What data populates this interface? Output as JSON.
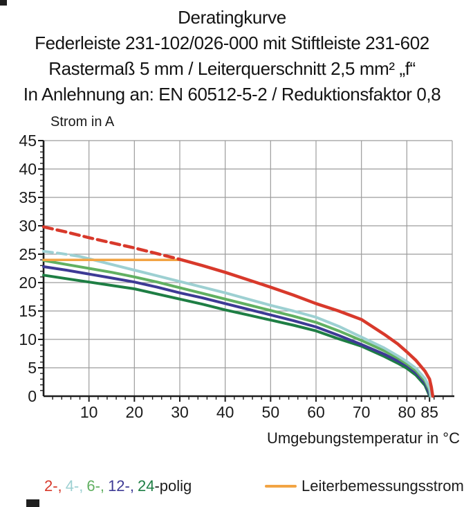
{
  "header": {
    "title": "Deratingkurve",
    "line2": "Federleiste 231-102/026-000 mit Stiftleiste 231-602",
    "line3": "Rastermaß 5 mm / Leiterquerschnitt 2,5 mm² „f“",
    "line4": "In Anlehnung an: EN 60512-5-2 / Reduktionsfaktor 0,8"
  },
  "legend": {
    "series": [
      {
        "label": "2-,",
        "color": "#d8392b"
      },
      {
        "label": "4-,",
        "color": "#9dd0d2"
      },
      {
        "label": "6-,",
        "color": "#61b061"
      },
      {
        "label": "12-,",
        "color": "#3d3a95"
      },
      {
        "label": "24",
        "color": "#1e7e44"
      }
    ],
    "suffix": "-polig",
    "rated_label": "Leiterbemessungsstrom",
    "rated_color": "#f2a444"
  },
  "chart_data": {
    "type": "line",
    "title": "Deratingkurve",
    "xlabel": "Umgebungstemperatur in °C",
    "ylabel": "Strom in A",
    "xlim": [
      0,
      90
    ],
    "ylim": [
      0,
      45
    ],
    "grid": {
      "x_step": 10,
      "y_step": 5,
      "color": "#9c9c9c"
    },
    "axis_color": "#1c1c1c",
    "x_tick_labels": [
      10,
      20,
      30,
      40,
      50,
      60,
      70,
      80,
      85
    ],
    "y_tick_labels": [
      45,
      40,
      35,
      30,
      25,
      20,
      15,
      10,
      5,
      0
    ],
    "x_minor_step": 2,
    "y_minor_step": 1,
    "draw_order": [
      4,
      3,
      2,
      1,
      5,
      0
    ],
    "series": [
      {
        "name": "2-polig",
        "color": "#d8392b",
        "width": 4.5,
        "dashed": [
          [
            0,
            29.8
          ],
          [
            5,
            28.9
          ],
          [
            10,
            27.9
          ],
          [
            15,
            27.0
          ],
          [
            20,
            26.1
          ],
          [
            25,
            25.1
          ],
          [
            30,
            24.1
          ]
        ],
        "solid": [
          [
            30,
            24.1
          ],
          [
            35,
            23.0
          ],
          [
            40,
            21.8
          ],
          [
            45,
            20.5
          ],
          [
            50,
            19.2
          ],
          [
            55,
            17.8
          ],
          [
            60,
            16.3
          ],
          [
            65,
            15.0
          ],
          [
            70,
            13.5
          ],
          [
            75,
            10.9
          ],
          [
            78,
            9.2
          ],
          [
            80,
            7.8
          ],
          [
            82,
            6.3
          ],
          [
            84,
            4.4
          ],
          [
            85,
            3.0
          ],
          [
            85.4,
            1.6
          ],
          [
            85.7,
            0
          ]
        ]
      },
      {
        "name": "4-polig",
        "color": "#9dd0d2",
        "width": 4,
        "dashed": [
          [
            0,
            25.5
          ],
          [
            4,
            25.1
          ],
          [
            8,
            24.6
          ]
        ],
        "solid": [
          [
            8,
            24.6
          ],
          [
            10,
            24.2
          ],
          [
            15,
            23.2
          ],
          [
            20,
            22.2
          ],
          [
            25,
            21.2
          ],
          [
            30,
            20.2
          ],
          [
            35,
            19.2
          ],
          [
            40,
            18.2
          ],
          [
            45,
            17.1
          ],
          [
            50,
            16.0
          ],
          [
            55,
            15.0
          ],
          [
            60,
            13.9
          ],
          [
            65,
            12.3
          ],
          [
            70,
            10.4
          ],
          [
            75,
            8.5
          ],
          [
            78,
            7.1
          ],
          [
            80,
            6.1
          ],
          [
            82,
            4.9
          ],
          [
            84,
            3.1
          ],
          [
            85,
            1.4
          ],
          [
            85.3,
            0
          ]
        ]
      },
      {
        "name": "6-polig",
        "color": "#61b061",
        "width": 4,
        "solid": [
          [
            0,
            23.9
          ],
          [
            5,
            23.2
          ],
          [
            10,
            22.5
          ],
          [
            15,
            21.8
          ],
          [
            20,
            21.0
          ],
          [
            25,
            20.1
          ],
          [
            30,
            19.1
          ],
          [
            35,
            18.1
          ],
          [
            40,
            17.1
          ],
          [
            45,
            16.1
          ],
          [
            50,
            15.1
          ],
          [
            55,
            14.1
          ],
          [
            60,
            13.0
          ],
          [
            65,
            11.5
          ],
          [
            70,
            9.8
          ],
          [
            75,
            8.0
          ],
          [
            78,
            6.7
          ],
          [
            80,
            5.7
          ],
          [
            82,
            4.5
          ],
          [
            84,
            2.7
          ],
          [
            85,
            1.0
          ],
          [
            85.2,
            0
          ]
        ]
      },
      {
        "name": "12-polig",
        "color": "#3d3a95",
        "width": 4,
        "solid": [
          [
            0,
            22.8
          ],
          [
            5,
            22.2
          ],
          [
            10,
            21.5
          ],
          [
            15,
            20.8
          ],
          [
            20,
            20.1
          ],
          [
            25,
            19.2
          ],
          [
            30,
            18.2
          ],
          [
            35,
            17.3
          ],
          [
            40,
            16.3
          ],
          [
            45,
            15.3
          ],
          [
            50,
            14.3
          ],
          [
            55,
            13.3
          ],
          [
            60,
            12.2
          ],
          [
            65,
            10.7
          ],
          [
            70,
            9.1
          ],
          [
            75,
            7.4
          ],
          [
            78,
            6.2
          ],
          [
            80,
            5.4
          ],
          [
            82,
            4.1
          ],
          [
            84,
            2.3
          ],
          [
            84.8,
            0.8
          ],
          [
            85.1,
            0
          ]
        ]
      },
      {
        "name": "24-polig",
        "color": "#1e7e44",
        "width": 4,
        "solid": [
          [
            0,
            21.3
          ],
          [
            5,
            20.7
          ],
          [
            10,
            20.1
          ],
          [
            15,
            19.5
          ],
          [
            20,
            18.9
          ],
          [
            25,
            18.0
          ],
          [
            30,
            17.1
          ],
          [
            35,
            16.2
          ],
          [
            40,
            15.2
          ],
          [
            45,
            14.3
          ],
          [
            50,
            13.4
          ],
          [
            55,
            12.5
          ],
          [
            60,
            11.5
          ],
          [
            65,
            10.1
          ],
          [
            70,
            8.8
          ],
          [
            75,
            7.0
          ],
          [
            78,
            5.8
          ],
          [
            80,
            4.9
          ],
          [
            82,
            3.7
          ],
          [
            84,
            1.9
          ],
          [
            84.7,
            0.6
          ],
          [
            85.0,
            0
          ]
        ]
      },
      {
        "name": "Leiterbemessungsstrom",
        "color": "#f2a444",
        "width": 3.5,
        "solid": [
          [
            0,
            24
          ],
          [
            30.5,
            24
          ]
        ]
      }
    ]
  }
}
